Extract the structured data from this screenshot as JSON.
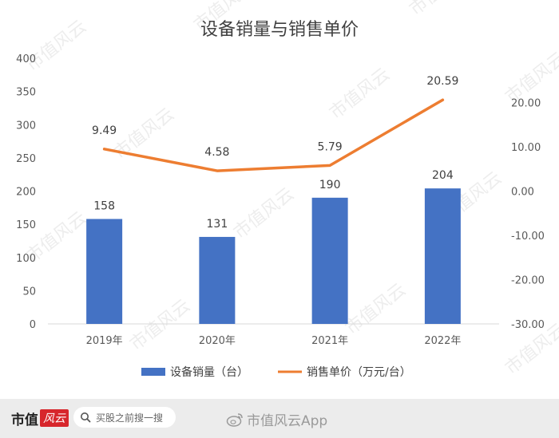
{
  "chart_data": {
    "type": "bar+line",
    "title": "设备销量与销售单价",
    "categories": [
      "2019年",
      "2020年",
      "2021年",
      "2022年"
    ],
    "series": [
      {
        "name": "设备销量（台）",
        "type": "bar",
        "axis": "left",
        "color": "#4472c4",
        "values": [
          158,
          131,
          190,
          204
        ],
        "labels": [
          "158",
          "131",
          "190",
          "204"
        ]
      },
      {
        "name": "销售单价（万元/台）",
        "type": "line",
        "axis": "right",
        "color": "#ed7d31",
        "values": [
          9.49,
          4.58,
          5.79,
          20.59
        ],
        "labels": [
          "9.49",
          "4.58",
          "5.79",
          "20.59"
        ]
      }
    ],
    "left_axis": {
      "ylim": [
        0,
        400
      ],
      "ticks": [
        "0",
        "50",
        "100",
        "150",
        "200",
        "250",
        "300",
        "350",
        "400"
      ]
    },
    "right_axis": {
      "ylim": [
        -30,
        30
      ],
      "ticks": [
        "-30.00",
        "-20.00",
        "-10.00",
        "0.00",
        "10.00",
        "20.00"
      ]
    },
    "grid": false,
    "legend_position": "bottom"
  },
  "watermark": "市值风云",
  "footer": {
    "brand_text": "市值",
    "brand_logo": "风云",
    "search_text": "买股之前搜一搜",
    "weibo_text": "市值风云App"
  }
}
